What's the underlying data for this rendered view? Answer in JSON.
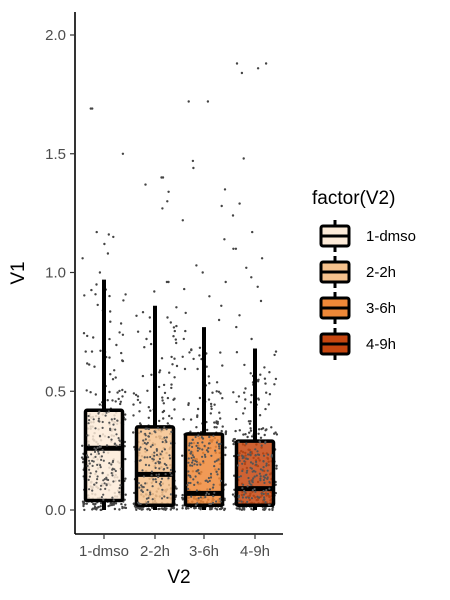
{
  "chart_data": {
    "type": "boxplot",
    "title": "",
    "xlabel": "V2",
    "ylabel": "V1",
    "categories": [
      "1-dmso",
      "2-2h",
      "3-6h",
      "4-9h"
    ],
    "y_ticks": [
      "0.0",
      "0.5",
      "1.0",
      "1.5",
      "2.0"
    ],
    "ylim": [
      -0.1,
      2.1
    ],
    "grid": false,
    "legend": {
      "title": "factor(V2)",
      "position": "right",
      "entries": [
        "1-dmso",
        "2-2h",
        "3-6h",
        "4-9h"
      ]
    },
    "colors": [
      "#fdebd8",
      "#f6c28d",
      "#ee8838",
      "#c6460f"
    ],
    "boxes": [
      {
        "category": "1-dmso",
        "min": 0.0,
        "q1": 0.04,
        "median": 0.26,
        "q3": 0.42,
        "whisker_high": 0.97,
        "outliers": [
          1.0,
          1.06,
          1.08,
          1.12,
          1.15,
          1.16,
          1.17,
          1.5,
          1.69,
          1.69
        ]
      },
      {
        "category": "2-2h",
        "min": 0.0,
        "q1": 0.02,
        "median": 0.15,
        "q3": 0.35,
        "whisker_high": 0.86,
        "outliers": [
          0.92,
          0.96,
          0.96,
          1.27,
          1.3,
          1.34,
          1.37,
          1.4,
          1.4
        ]
      },
      {
        "category": "3-6h",
        "min": 0.0,
        "q1": 0.02,
        "median": 0.07,
        "q3": 0.32,
        "whisker_high": 0.77,
        "outliers": [
          0.8,
          0.83,
          0.86,
          0.9,
          0.93,
          0.96,
          1.0,
          1.03,
          1.14,
          1.22,
          1.28,
          1.35,
          1.44,
          1.47,
          1.72,
          1.72
        ]
      },
      {
        "category": "4-9h",
        "min": 0.0,
        "q1": 0.02,
        "median": 0.09,
        "q3": 0.29,
        "whisker_high": 0.68,
        "outliers": [
          0.72,
          0.77,
          0.82,
          0.88,
          0.94,
          0.98,
          1.02,
          1.06,
          1.1,
          1.1,
          1.17,
          1.24,
          1.29,
          1.48,
          1.84,
          1.86,
          1.88,
          1.88
        ]
      }
    ]
  }
}
